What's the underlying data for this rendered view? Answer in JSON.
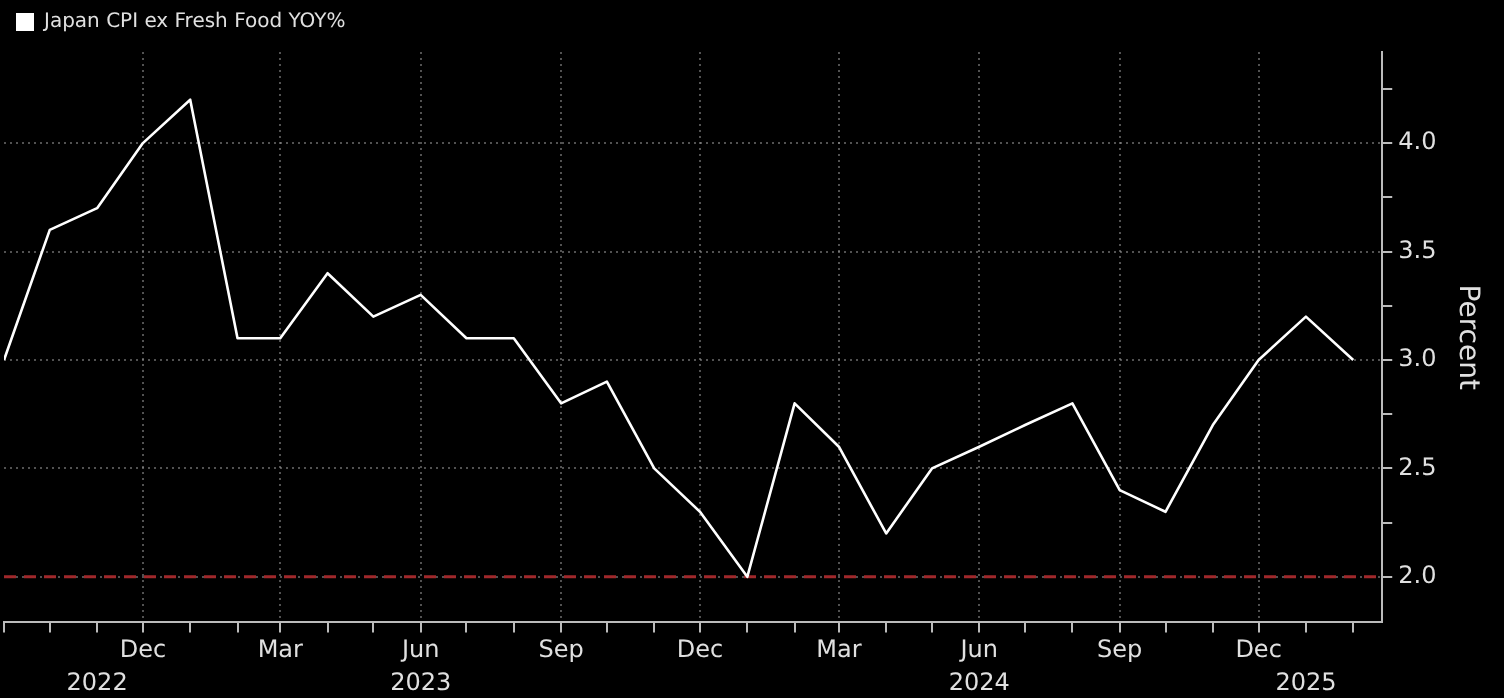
{
  "chart_data": {
    "type": "line",
    "ylabel": "Percent",
    "x": [
      "2022-09",
      "2022-10",
      "2022-11",
      "2022-12",
      "2023-01",
      "2023-02",
      "2023-03",
      "2023-04",
      "2023-05",
      "2023-06",
      "2023-07",
      "2023-08",
      "2023-09",
      "2023-10",
      "2023-11",
      "2023-12",
      "2024-01",
      "2024-02",
      "2024-03",
      "2024-04",
      "2024-05",
      "2024-06",
      "2024-07",
      "2024-08",
      "2024-09",
      "2024-10",
      "2024-11",
      "2024-12",
      "2025-01",
      "2025-02"
    ],
    "series": [
      {
        "name": "Japan CPI ex Fresh Food YOY%",
        "color": "#ffffff",
        "values": [
          3.0,
          3.6,
          3.7,
          4.0,
          4.2,
          3.1,
          3.1,
          3.4,
          3.2,
          3.3,
          3.1,
          3.1,
          2.8,
          2.9,
          2.5,
          2.3,
          2.0,
          2.8,
          2.6,
          2.2,
          2.5,
          2.6,
          2.7,
          2.8,
          2.4,
          2.3,
          2.7,
          3.0,
          3.2,
          3.0
        ]
      }
    ],
    "xlim": [
      "2022-09",
      "2025-02-20"
    ],
    "xticks": [
      {
        "value": "2022-09",
        "label": null
      },
      {
        "value": "2022-10",
        "label": null
      },
      {
        "value": "2022-11",
        "label": null
      },
      {
        "value": "2022-12",
        "label": "Dec"
      },
      {
        "value": "2023-01",
        "label": null
      },
      {
        "value": "2023-02",
        "label": null
      },
      {
        "value": "2023-03",
        "label": "Mar"
      },
      {
        "value": "2023-04",
        "label": null
      },
      {
        "value": "2023-05",
        "label": null
      },
      {
        "value": "2023-06",
        "label": "Jun"
      },
      {
        "value": "2023-07",
        "label": null
      },
      {
        "value": "2023-08",
        "label": null
      },
      {
        "value": "2023-09",
        "label": "Sep"
      },
      {
        "value": "2023-10",
        "label": null
      },
      {
        "value": "2023-11",
        "label": null
      },
      {
        "value": "2023-12",
        "label": "Dec"
      },
      {
        "value": "2024-01",
        "label": null
      },
      {
        "value": "2024-02",
        "label": null
      },
      {
        "value": "2024-03",
        "label": "Mar"
      },
      {
        "value": "2024-04",
        "label": null
      },
      {
        "value": "2024-05",
        "label": null
      },
      {
        "value": "2024-06",
        "label": "Jun"
      },
      {
        "value": "2024-07",
        "label": null
      },
      {
        "value": "2024-08",
        "label": null
      },
      {
        "value": "2024-09",
        "label": "Sep"
      },
      {
        "value": "2024-10",
        "label": null
      },
      {
        "value": "2024-11",
        "label": null
      },
      {
        "value": "2024-12",
        "label": "Dec"
      },
      {
        "value": "2025-01",
        "label": null
      },
      {
        "value": "2025-02",
        "label": null
      }
    ],
    "x2lim": [
      "2022-09",
      "2025-02-20"
    ],
    "x2ticks": [
      {
        "value": "2022-11",
        "label": "2022"
      },
      {
        "value": "2023-06",
        "label": "2023"
      },
      {
        "value": "2024-06",
        "label": "2024"
      },
      {
        "value": "2025-01",
        "label": "2025"
      }
    ],
    "ylim": [
      1.79,
      4.42
    ],
    "yticks": [
      {
        "value": 2.0,
        "label": "2.0"
      },
      {
        "value": 2.25,
        "label": null
      },
      {
        "value": 2.5,
        "label": "2.5"
      },
      {
        "value": 2.75,
        "label": null
      },
      {
        "value": 3.0,
        "label": "3.0"
      },
      {
        "value": 3.25,
        "label": null
      },
      {
        "value": 3.5,
        "label": "3.5"
      },
      {
        "value": 3.75,
        "label": null
      },
      {
        "value": 4.0,
        "label": "4.0"
      },
      {
        "value": 4.25,
        "label": null
      }
    ],
    "ref_lines": [
      {
        "axis": "y",
        "value": 2.0,
        "label": null,
        "color": "#a0282b",
        "line_style": "dashed"
      }
    ],
    "grid": true,
    "legend": "top left",
    "marker": "none",
    "line_style": "solid"
  }
}
